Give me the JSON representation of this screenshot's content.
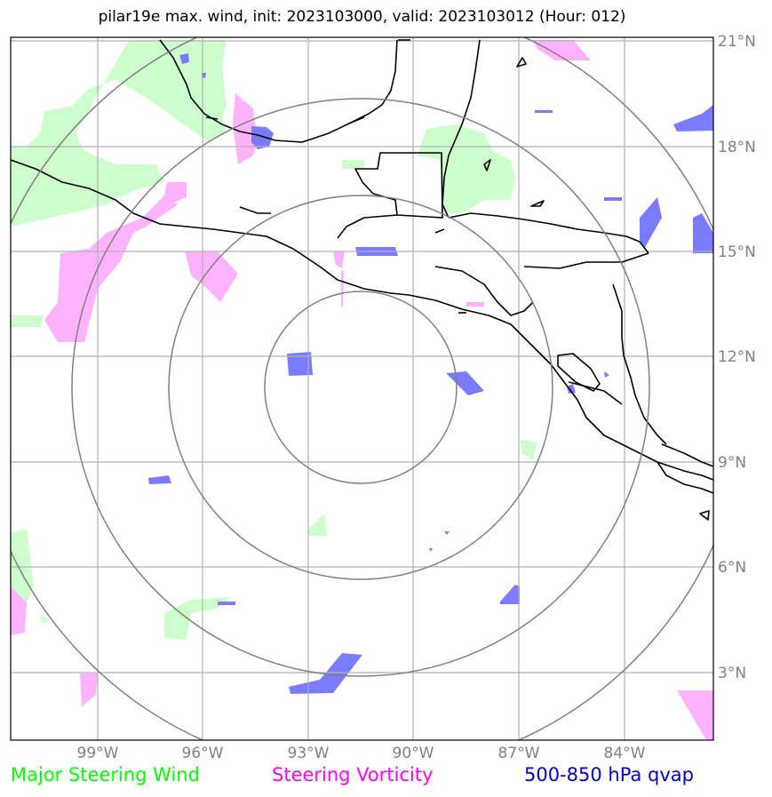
{
  "title": "pilar19e max. wind, init: 2023103000, valid: 2023103012 (Hour: 012)",
  "axes": {
    "lon_labels": [
      "99°W",
      "96°W",
      "93°W",
      "90°W",
      "87°W",
      "84°W"
    ],
    "lat_labels": [
      "21°N",
      "18°N",
      "15°N",
      "12°N",
      "9°N",
      "6°N",
      "3°N"
    ]
  },
  "map_extent": {
    "lon_min": -101.0,
    "lon_max": -81.0,
    "lat_min": 1.0,
    "lat_max": 21.0
  },
  "grid": {
    "lons": [
      -99,
      -96,
      -93,
      -90,
      -87,
      -84
    ],
    "lats": [
      21,
      18,
      15,
      12,
      9,
      6,
      3
    ]
  },
  "range_rings": {
    "center": [
      -91.4,
      11.2
    ],
    "radii_deg": [
      2.75,
      5.5,
      8.25,
      11.0
    ]
  },
  "legend": [
    {
      "label": "Major Steering Wind",
      "color": "#00ff00"
    },
    {
      "label": "Steering Vorticity",
      "color": "#ff00ff"
    },
    {
      "label": "500-850 hPa qvap",
      "color": "#0000cc"
    }
  ],
  "colors": {
    "steering_wind_fill": "#ccffcc",
    "vorticity_fill": "#ffb3ff",
    "qvap_fill": "#7b7bff",
    "coastline": "#000000",
    "grid": "#b0b0b0",
    "rings": "#808080"
  }
}
